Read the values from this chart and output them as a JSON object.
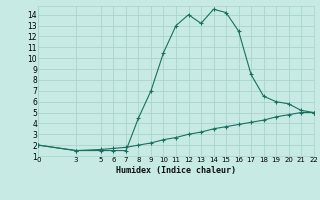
{
  "xlabel": "Humidex (Indice chaleur)",
  "bg_color": "#c8eae4",
  "grid_color": "#a8d4cc",
  "line_color": "#1a7060",
  "line1_x": [
    0,
    3,
    5,
    6,
    7,
    8,
    9,
    10,
    11,
    12,
    13,
    14,
    15,
    16,
    17,
    18,
    19,
    20,
    21,
    22
  ],
  "line1_y": [
    2,
    1.5,
    1.5,
    1.5,
    1.5,
    4.5,
    7.0,
    10.5,
    13.0,
    14.0,
    13.2,
    14.5,
    14.2,
    12.5,
    8.5,
    6.5,
    6.0,
    5.8,
    5.2,
    5.0
  ],
  "line2_x": [
    0,
    3,
    5,
    6,
    7,
    8,
    9,
    10,
    11,
    12,
    13,
    14,
    15,
    16,
    17,
    18,
    19,
    20,
    21,
    22
  ],
  "line2_y": [
    2,
    1.5,
    1.6,
    1.7,
    1.8,
    2.0,
    2.2,
    2.5,
    2.7,
    3.0,
    3.2,
    3.5,
    3.7,
    3.9,
    4.1,
    4.3,
    4.6,
    4.8,
    5.0,
    5.0
  ],
  "xlim": [
    0,
    22
  ],
  "ylim": [
    1,
    14.8
  ],
  "yticks": [
    1,
    2,
    3,
    4,
    5,
    6,
    7,
    8,
    9,
    10,
    11,
    12,
    13,
    14
  ],
  "xticks": [
    0,
    3,
    5,
    6,
    7,
    8,
    9,
    10,
    11,
    12,
    13,
    14,
    15,
    16,
    17,
    18,
    19,
    20,
    21,
    22
  ]
}
